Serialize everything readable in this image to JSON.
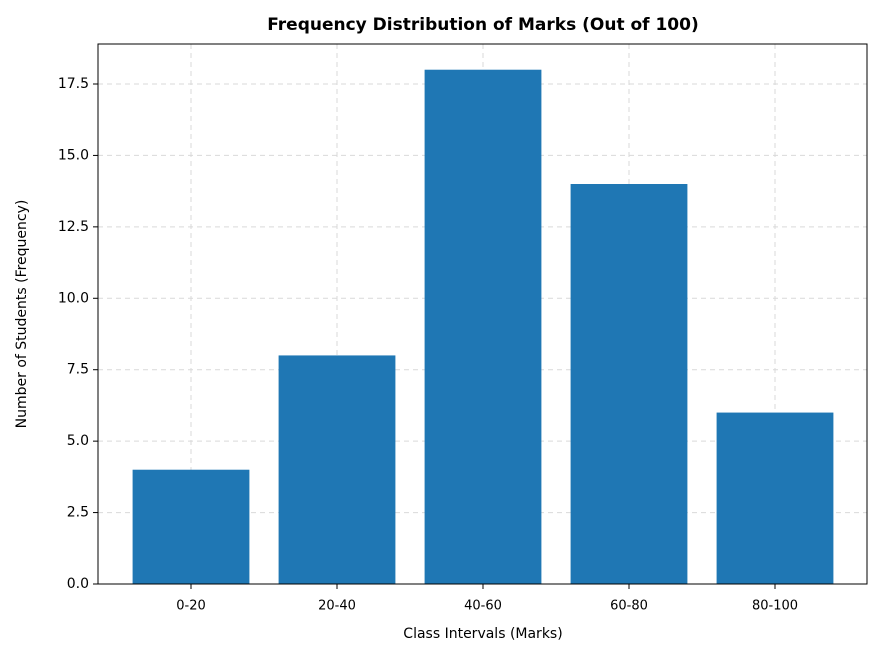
{
  "chart_data": {
    "type": "bar",
    "title": "Frequency Distribution of Marks (Out of 100)",
    "x_label": "Class Intervals (Marks)",
    "y_label": "Number of Students (Frequency)",
    "categories": [
      "0-20",
      "20-40",
      "40-60",
      "60-80",
      "80-100"
    ],
    "values": [
      4,
      8,
      18,
      14,
      6
    ],
    "color": "#1f77b4",
    "ylim": [
      0,
      18.9
    ],
    "yticks": [
      {
        "value": 0,
        "label": "0.0"
      },
      2.5,
      {
        "value": 5,
        "label": "5.0"
      },
      7.5,
      {
        "value": 10,
        "label": "10.0"
      },
      12.5,
      {
        "value": 15,
        "label": "15.0"
      },
      17.5
    ],
    "grid": true
  }
}
